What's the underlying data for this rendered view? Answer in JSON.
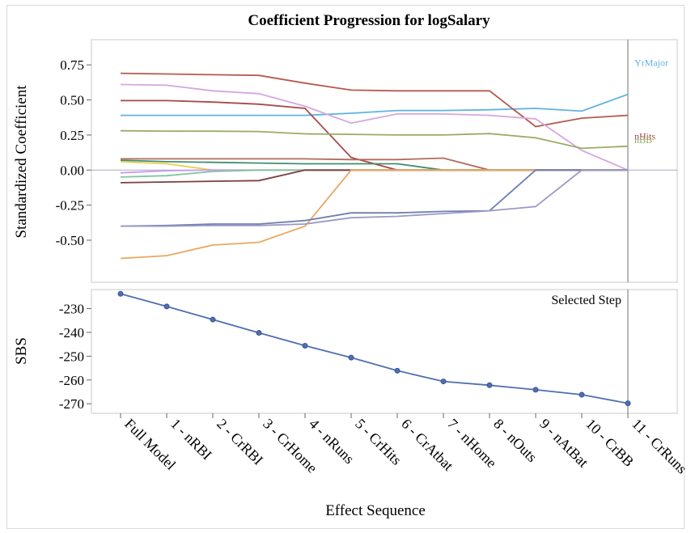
{
  "chart_data": [
    {
      "type": "line",
      "title": "Coefficient Progression for logSalary",
      "ylabel": "Standardized Coefficient",
      "xlabel": "Effect Sequence",
      "ylim": [
        -0.8,
        0.93
      ],
      "yticks": [
        0.75,
        0.5,
        0.25,
        0.0,
        -0.25,
        -0.5
      ],
      "ytick_labels": [
        "0.75",
        "0.50",
        "0.25",
        "0.00",
        "-0.25",
        "-0.50"
      ],
      "categories": [
        "Full Model",
        "1 - nRBI",
        "2 - CrRBI",
        "3 - CrHome",
        "4 - nRuns",
        "5 - CrHits",
        "6 - CrAtbat",
        "7 - nHome",
        "8 - nOuts",
        "9 - nAtBat",
        "10 - CrBB",
        "11 - CrRuns"
      ],
      "selected_step": "11 - CrRuns",
      "zero_line": true,
      "series": [
        {
          "name": "YrMajor",
          "color": "#5fb3e0",
          "values": [
            0.39,
            0.39,
            0.39,
            0.39,
            0.39,
            0.405,
            0.425,
            0.425,
            0.43,
            0.44,
            0.42,
            0.54
          ]
        },
        {
          "name": "nHits",
          "color": "#a84a4a",
          "values": [
            0.495,
            0.495,
            0.485,
            0.47,
            0.44,
            0.09,
            0.0,
            0.0,
            0.0,
            0.0,
            0.0,
            0.0
          ]
        },
        {
          "name": "",
          "color": "#b55a4e",
          "values": [
            0.69,
            0.685,
            0.68,
            0.675,
            0.62,
            0.57,
            0.565,
            0.565,
            0.565,
            0.31,
            0.37,
            0.39
          ]
        },
        {
          "name": "",
          "color": "#d6a6e0",
          "values": [
            0.61,
            0.605,
            0.565,
            0.545,
            0.455,
            0.335,
            0.4,
            0.4,
            0.39,
            0.365,
            0.14,
            0.0
          ]
        },
        {
          "name": "nBB",
          "color": "#9aab68",
          "values": [
            0.28,
            0.278,
            0.277,
            0.275,
            0.258,
            0.255,
            0.25,
            0.25,
            0.26,
            0.23,
            0.155,
            0.17
          ]
        },
        {
          "name": "",
          "color": "#b26a5e",
          "values": [
            0.08,
            0.08,
            0.08,
            0.08,
            0.08,
            0.075,
            0.075,
            0.085,
            0.0,
            0.0,
            0.0,
            0.0
          ]
        },
        {
          "name": "",
          "color": "#3f8f6f",
          "values": [
            0.07,
            0.06,
            0.055,
            0.05,
            0.045,
            0.045,
            0.045,
            0.0,
            0.0,
            0.0,
            0.0,
            0.0
          ]
        },
        {
          "name": "",
          "color": "#e8cf4f",
          "values": [
            0.06,
            0.045,
            0.0,
            0.0,
            0.0,
            0.0,
            0.0,
            0.0,
            0.0,
            0.0,
            0.0,
            0.0
          ]
        },
        {
          "name": "",
          "color": "#cc99ee",
          "values": [
            -0.02,
            -0.005,
            0.0,
            0.0,
            0.0,
            0.0,
            0.0,
            0.0,
            0.0,
            0.0,
            0.0,
            0.0
          ]
        },
        {
          "name": "",
          "color": "#7fc79f",
          "values": [
            -0.05,
            -0.04,
            -0.01,
            0.0,
            0.0,
            0.0,
            0.0,
            0.0,
            0.0,
            0.0,
            0.0,
            0.0
          ]
        },
        {
          "name": "",
          "color": "#7a4040",
          "values": [
            -0.09,
            -0.085,
            -0.08,
            -0.075,
            0.0,
            0.0,
            0.0,
            0.0,
            0.0,
            0.0,
            0.0,
            0.0
          ]
        },
        {
          "name": "",
          "color": "#e8a860",
          "values": [
            -0.63,
            -0.61,
            -0.535,
            -0.515,
            -0.4,
            0.0,
            0.0,
            0.0,
            0.0,
            0.0,
            0.0,
            0.0
          ]
        },
        {
          "name": "",
          "color": "#6f7faf",
          "values": [
            -0.4,
            -0.395,
            -0.385,
            -0.385,
            -0.36,
            -0.305,
            -0.305,
            -0.295,
            -0.29,
            0.0,
            0.0,
            0.0
          ]
        },
        {
          "name": "",
          "color": "#9a9ac4",
          "values": [
            -0.4,
            -0.4,
            -0.395,
            -0.395,
            -0.385,
            -0.34,
            -0.33,
            -0.31,
            -0.29,
            -0.26,
            0.0,
            0.0
          ]
        }
      ]
    },
    {
      "type": "line",
      "ylabel": "SBS",
      "ylim": [
        -274,
        -222
      ],
      "yticks": [
        -230,
        -240,
        -250,
        -260,
        -270
      ],
      "ytick_labels": [
        "-230",
        "-240",
        "-250",
        "-260",
        "-270"
      ],
      "selected_step_label": "Selected Step",
      "series": [
        {
          "name": "",
          "color": "#4f6fb0",
          "values": [
            -223.8,
            -229.1,
            -234.6,
            -240.2,
            -245.6,
            -250.6,
            -256.1,
            -260.6,
            -262.2,
            -264.1,
            -266.2,
            -269.8
          ]
        }
      ]
    }
  ]
}
